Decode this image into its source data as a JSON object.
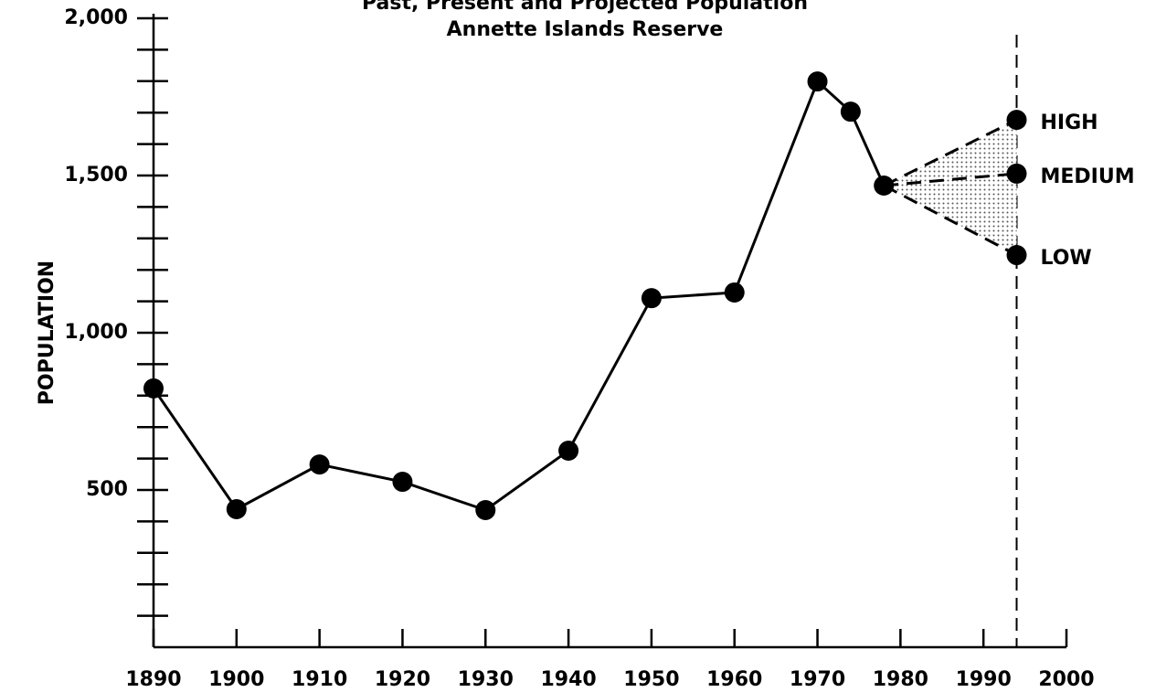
{
  "chart_data": {
    "type": "line",
    "title": "Past, Present and Projected Population",
    "subtitle": "Annette Islands Reserve",
    "ylabel": "POPULATION",
    "x": [
      1890,
      1900,
      1910,
      1920,
      1930,
      1940,
      1950,
      1960,
      1970,
      1974,
      1978
    ],
    "values": [
      823,
      439,
      581,
      526,
      436,
      625,
      1110,
      1128,
      1799,
      1703,
      1468
    ],
    "color": "#000000",
    "projection_x": 1994,
    "projections": [
      {
        "name": "HIGH",
        "value": 1677
      },
      {
        "name": "MEDIUM",
        "value": 1506
      },
      {
        "name": "LOW",
        "value": 1247
      }
    ],
    "xlim": [
      1890,
      2000
    ],
    "ylim": [
      0,
      2000
    ],
    "xticks": [
      1890,
      1900,
      1910,
      1920,
      1930,
      1940,
      1950,
      1960,
      1970,
      1980,
      1990,
      2000
    ],
    "yticks": [
      500,
      {
        "value": 1000,
        "label": "1,000"
      },
      {
        "value": 1500,
        "label": "1,500"
      },
      {
        "value": 2000,
        "label": "2,000"
      }
    ],
    "yminorticks": [
      100,
      200,
      300,
      400,
      600,
      700,
      800,
      900,
      1100,
      1200,
      1300,
      1400,
      1600,
      1700,
      1800,
      1900
    ]
  }
}
